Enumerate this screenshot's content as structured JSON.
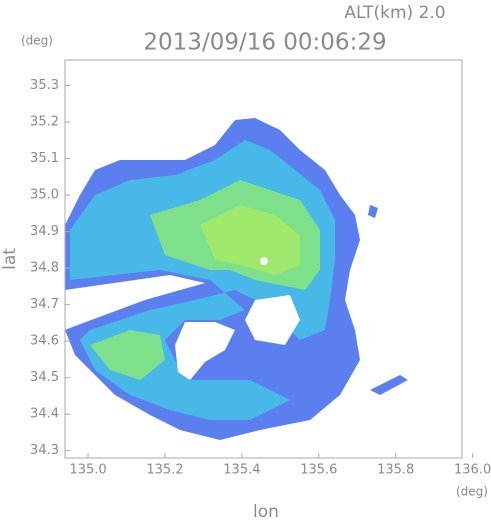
{
  "chart_data": {
    "type": "map",
    "title": "2013/09/16 00:06:29",
    "altitude_label": "ALT(km) 2.0",
    "y_unit": "(deg)",
    "x_unit": "(deg)",
    "x_label": "lon",
    "y_label": "lat",
    "xlim": [
      134.94,
      136.04
    ],
    "ylim": [
      34.28,
      35.37
    ],
    "xticks": [
      {
        "value": 135.0,
        "label": "135.0"
      },
      135.2,
      135.4,
      135.6,
      135.8,
      {
        "value": 136.0,
        "label": "136.0"
      }
    ],
    "yticks": [
      34.3,
      34.4,
      34.5,
      34.6,
      34.7,
      34.8,
      34.9,
      {
        "value": 35.0,
        "label": "35.0"
      },
      35.1,
      35.2,
      35.3
    ]
  }
}
